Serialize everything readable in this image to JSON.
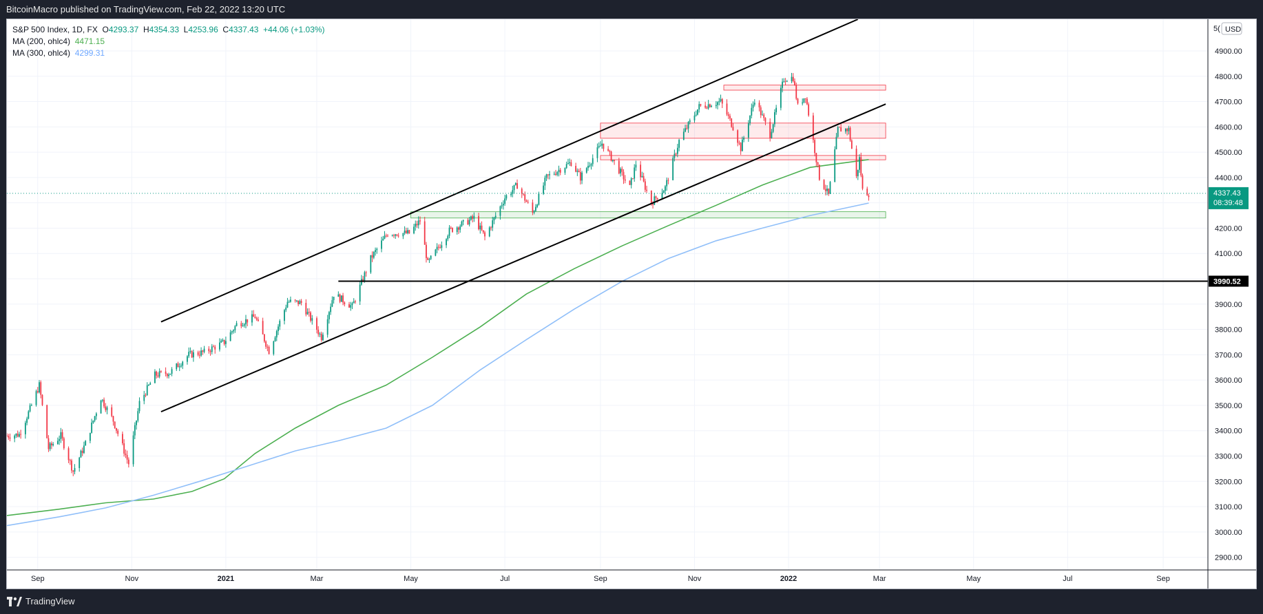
{
  "header": {
    "publisher_text": "BitcoinMacro published on TradingView.com, Feb 22, 2022 13:20 UTC"
  },
  "legend": {
    "symbol": "S&P 500 Index, 1D, FX",
    "open_label": "O",
    "open": "4293.37",
    "high_label": "H",
    "high": "4354.33",
    "low_label": "L",
    "low": "4253.96",
    "close_label": "C",
    "close": "4337.43",
    "change": "+44.06 (+1.03%)",
    "ma200_label": "MA (200, ohlc4)",
    "ma200_value": "4471.15",
    "ma300_label": "MA (300, ohlc4)",
    "ma300_value": "4299.31"
  },
  "footer": {
    "brand": "TradingView",
    "icon": "tradingview-logo-icon"
  },
  "colors": {
    "up": "#089981",
    "down": "#f23645",
    "ma200": "#4caf50",
    "ma300": "#90bff9",
    "price_tag": "#089981",
    "grid": "#f0f3fa",
    "resistance": "#f23645",
    "support": "#4caf50"
  },
  "chart_data": {
    "type": "line",
    "title": "S&P 500 Index, 1D, FX",
    "currency": "USD",
    "y_axis": {
      "side": "right",
      "ylim": [
        2850,
        5025
      ],
      "ticks": [
        2900,
        3000,
        3100,
        3200,
        3300,
        3400,
        3500,
        3600,
        3700,
        3800,
        3900,
        4000,
        4100,
        4200,
        4300,
        4400,
        4500,
        4600,
        4700,
        4800,
        4900
      ],
      "tick_labels": [
        "2900.00",
        "3000.00",
        "3100.00",
        "3200.00",
        "3300.00",
        "3400.00",
        "3500.00",
        "3600.00",
        "3700.00",
        "3800.00",
        "3900.00",
        "4000.00",
        "4100.00",
        "4200.00",
        "4300.00",
        "4400.00",
        "4500.00",
        "4600.00",
        "4700.00",
        "4800.00",
        "4900.00"
      ],
      "top_label": "5("
    },
    "x_axis": {
      "xlim": [
        "2020-08-12",
        "2022-09-30"
      ],
      "ticks": [
        {
          "date": "2020-09-01",
          "label": "Sep",
          "bold": false
        },
        {
          "date": "2020-11-01",
          "label": "Nov",
          "bold": false
        },
        {
          "date": "2021-01-01",
          "label": "2021",
          "bold": true
        },
        {
          "date": "2021-03-01",
          "label": "Mar",
          "bold": false
        },
        {
          "date": "2021-05-01",
          "label": "May",
          "bold": false
        },
        {
          "date": "2021-07-01",
          "label": "Jul",
          "bold": false
        },
        {
          "date": "2021-09-01",
          "label": "Sep",
          "bold": false
        },
        {
          "date": "2021-11-01",
          "label": "Nov",
          "bold": false
        },
        {
          "date": "2022-01-01",
          "label": "2022",
          "bold": true
        },
        {
          "date": "2022-03-01",
          "label": "Mar",
          "bold": false
        },
        {
          "date": "2022-05-01",
          "label": "May",
          "bold": false
        },
        {
          "date": "2022-07-01",
          "label": "Jul",
          "bold": false
        },
        {
          "date": "2022-09-01",
          "label": "Sep",
          "bold": false
        }
      ]
    },
    "price_path": [
      [
        "2020-08-12",
        3380
      ],
      [
        "2020-08-20",
        3385
      ],
      [
        "2020-08-28",
        3500
      ],
      [
        "2020-09-02",
        3580
      ],
      [
        "2020-09-08",
        3330
      ],
      [
        "2020-09-16",
        3380
      ],
      [
        "2020-09-24",
        3240
      ],
      [
        "2020-10-02",
        3350
      ],
      [
        "2020-10-12",
        3530
      ],
      [
        "2020-10-20",
        3440
      ],
      [
        "2020-10-30",
        3270
      ],
      [
        "2020-11-06",
        3510
      ],
      [
        "2020-11-16",
        3620
      ],
      [
        "2020-11-26",
        3630
      ],
      [
        "2020-12-08",
        3700
      ],
      [
        "2020-12-18",
        3710
      ],
      [
        "2020-12-31",
        3750
      ],
      [
        "2021-01-08",
        3820
      ],
      [
        "2021-01-20",
        3850
      ],
      [
        "2021-01-29",
        3715
      ],
      [
        "2021-02-10",
        3910
      ],
      [
        "2021-02-19",
        3905
      ],
      [
        "2021-03-04",
        3770
      ],
      [
        "2021-03-12",
        3940
      ],
      [
        "2021-03-24",
        3890
      ],
      [
        "2021-04-05",
        4080
      ],
      [
        "2021-04-16",
        4180
      ],
      [
        "2021-04-30",
        4180
      ],
      [
        "2021-05-07",
        4230
      ],
      [
        "2021-05-12",
        4060
      ],
      [
        "2021-05-26",
        4190
      ],
      [
        "2021-06-11",
        4240
      ],
      [
        "2021-06-18",
        4165
      ],
      [
        "2021-07-01",
        4320
      ],
      [
        "2021-07-09",
        4370
      ],
      [
        "2021-07-19",
        4260
      ],
      [
        "2021-07-28",
        4400
      ],
      [
        "2021-08-13",
        4460
      ],
      [
        "2021-08-19",
        4400
      ],
      [
        "2021-09-02",
        4535
      ],
      [
        "2021-09-10",
        4460
      ],
      [
        "2021-09-20",
        4360
      ],
      [
        "2021-09-24",
        4455
      ],
      [
        "2021-10-04",
        4300
      ],
      [
        "2021-10-13",
        4360
      ],
      [
        "2021-10-22",
        4545
      ],
      [
        "2021-11-04",
        4680
      ],
      [
        "2021-11-18",
        4700
      ],
      [
        "2021-11-26",
        4600
      ],
      [
        "2021-12-01",
        4515
      ],
      [
        "2021-12-10",
        4710
      ],
      [
        "2021-12-20",
        4570
      ],
      [
        "2021-12-29",
        4790
      ],
      [
        "2022-01-04",
        4795
      ],
      [
        "2022-01-07",
        4680
      ],
      [
        "2022-01-12",
        4725
      ],
      [
        "2022-01-21",
        4400
      ],
      [
        "2022-01-27",
        4330
      ],
      [
        "2022-02-02",
        4590
      ],
      [
        "2022-02-09",
        4590
      ],
      [
        "2022-02-14",
        4400
      ],
      [
        "2022-02-16",
        4475
      ],
      [
        "2022-02-18",
        4350
      ],
      [
        "2022-02-22",
        4337
      ]
    ],
    "series": [
      {
        "name": "MA (200, ohlc4)",
        "points": [
          [
            "2020-08-12",
            3065
          ],
          [
            "2020-09-15",
            3090
          ],
          [
            "2020-10-15",
            3115
          ],
          [
            "2020-11-15",
            3130
          ],
          [
            "2020-12-10",
            3160
          ],
          [
            "2020-12-31",
            3210
          ],
          [
            "2021-01-20",
            3310
          ],
          [
            "2021-02-15",
            3410
          ],
          [
            "2021-03-15",
            3500
          ],
          [
            "2021-04-15",
            3580
          ],
          [
            "2021-05-15",
            3690
          ],
          [
            "2021-06-15",
            3810
          ],
          [
            "2021-07-15",
            3940
          ],
          [
            "2021-08-15",
            4040
          ],
          [
            "2021-09-15",
            4130
          ],
          [
            "2021-10-15",
            4210
          ],
          [
            "2021-11-15",
            4290
          ],
          [
            "2021-12-15",
            4370
          ],
          [
            "2022-01-15",
            4440
          ],
          [
            "2022-02-22",
            4471
          ]
        ]
      },
      {
        "name": "MA (300, ohlc4)",
        "points": [
          [
            "2020-08-12",
            3025
          ],
          [
            "2020-09-15",
            3060
          ],
          [
            "2020-10-15",
            3095
          ],
          [
            "2020-11-15",
            3145
          ],
          [
            "2020-12-15",
            3200
          ],
          [
            "2021-01-15",
            3260
          ],
          [
            "2021-02-15",
            3320
          ],
          [
            "2021-03-15",
            3360
          ],
          [
            "2021-04-15",
            3410
          ],
          [
            "2021-05-15",
            3500
          ],
          [
            "2021-06-15",
            3640
          ],
          [
            "2021-07-15",
            3760
          ],
          [
            "2021-08-15",
            3880
          ],
          [
            "2021-09-15",
            3990
          ],
          [
            "2021-10-15",
            4080
          ],
          [
            "2021-11-15",
            4150
          ],
          [
            "2021-12-15",
            4200
          ],
          [
            "2022-01-15",
            4250
          ],
          [
            "2022-02-22",
            4299
          ]
        ]
      }
    ],
    "drawings": {
      "channel_upper": [
        [
          "2020-11-20",
          3830
        ],
        [
          "2022-02-15",
          5025
        ]
      ],
      "channel_middle": [
        [
          "2020-11-20",
          3475
        ],
        [
          "2022-03-05",
          4690
        ]
      ],
      "horizontal_level": {
        "start": "2021-03-15",
        "value": 3990.52,
        "label": "3990.52"
      },
      "resistance_zones": [
        {
          "start": "2021-11-20",
          "end": "2022-03-05",
          "low": 4745,
          "high": 4765
        },
        {
          "start": "2021-09-01",
          "end": "2022-03-05",
          "low": 4555,
          "high": 4615
        },
        {
          "start": "2021-09-01",
          "end": "2022-03-05",
          "low": 4470,
          "high": 4487
        }
      ],
      "support_zones": [
        {
          "start": "2021-05-01",
          "end": "2022-03-05",
          "low": 4240,
          "high": 4265
        }
      ]
    },
    "last_price": {
      "value": 4337.43,
      "label": "4337.43",
      "countdown": "08:39:48"
    },
    "grid": true,
    "legend_position": "top-left"
  }
}
